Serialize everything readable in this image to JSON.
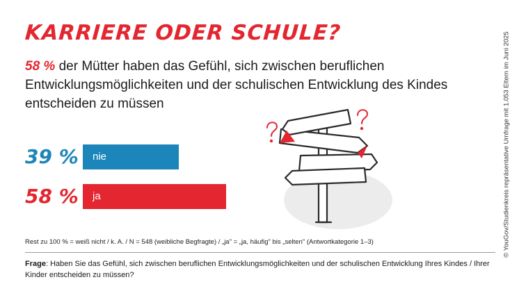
{
  "title": "KARRIERE ODER SCHULE?",
  "subtitle": {
    "highlight": "58 %",
    "text": " der Mütter haben das Gefühl, sich zwischen beruflichen Entwicklungsmöglichkeiten und der schulischen Entwicklung des Kindes entscheiden zu müssen"
  },
  "chart_data": {
    "type": "bar",
    "orientation": "horizontal",
    "categories": [
      "nie",
      "ja"
    ],
    "values": [
      39,
      58
    ],
    "value_labels": [
      "39 %",
      "58 %"
    ],
    "colors": [
      "#1c85b9",
      "#e3262f"
    ],
    "unit": "%",
    "grid": false
  },
  "note": "Rest zu 100 % = weiß nicht / k. A. / N = 548 (weibliche Begfragte) / „ja\" = „ja, häufig\" bis „selten\" (Antwortkategorie 1–3)",
  "question": {
    "label": "Frage",
    "text": ": Haben Sie das Gefühl, sich zwischen beruflichen Entwicklungsmöglichkeiten und der schulischen Entwicklung Ihres Kindes / Ihrer Kinder entscheiden zu müssen?"
  },
  "copyright": "© YouGov/Studienkreis repräsentative Umfrage mit 1.053 Eltern im Juni 2025",
  "illustration": {
    "icon": "signpost-icon"
  }
}
